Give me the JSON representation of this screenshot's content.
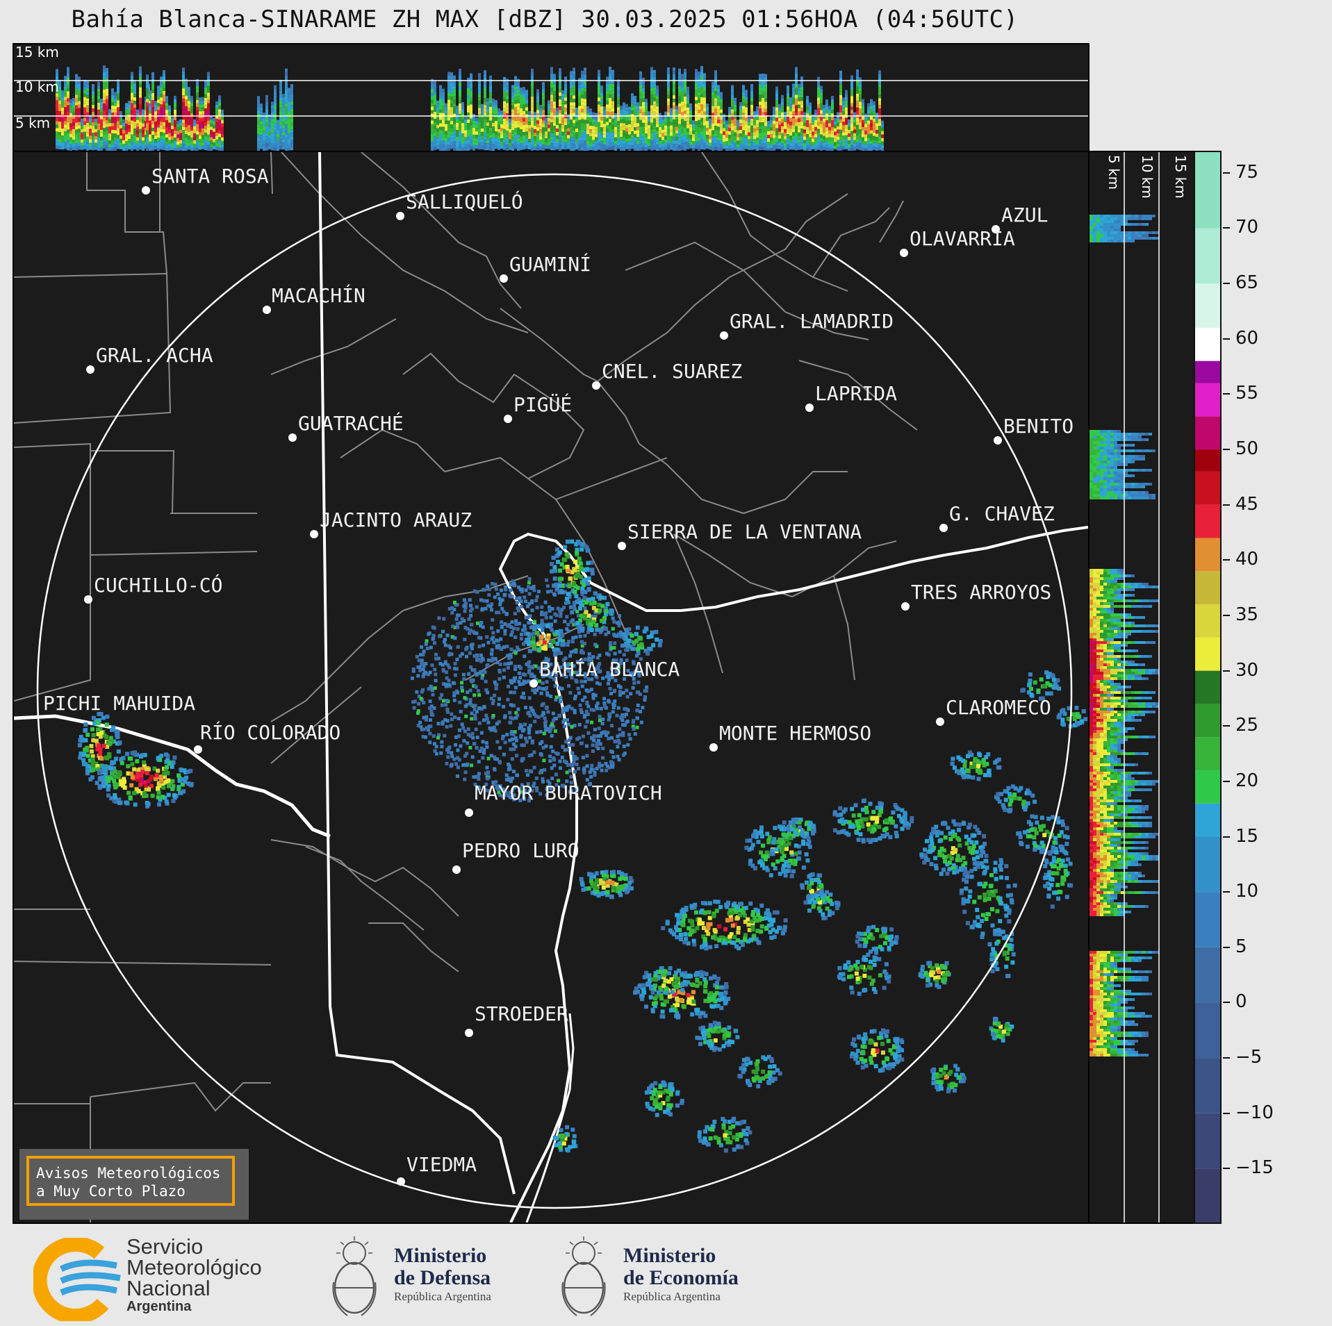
{
  "title": "Bahía Blanca-SINARAME ZH MAX [dBZ] 30.03.2025 01:56HOA (04:56UTC)",
  "top_section": {
    "labels": [
      "15 km",
      "10 km",
      "5 km"
    ]
  },
  "right_section": {
    "labels": [
      "5 km",
      "10 km",
      "15 km"
    ]
  },
  "colorbar": {
    "ticks": [
      75,
      70,
      65,
      60,
      55,
      50,
      45,
      40,
      35,
      30,
      25,
      20,
      15,
      10,
      5,
      0,
      -5,
      -10,
      -15
    ],
    "tick_labels": [
      "75",
      "70",
      "65",
      "60",
      "55",
      "50",
      "45",
      "40",
      "35",
      "30",
      "25",
      "20",
      "15",
      "10",
      "5",
      "0",
      "−5",
      "−10",
      "−15"
    ],
    "range": [
      -20,
      77
    ],
    "bands": [
      {
        "from": -20,
        "to": -15,
        "color": "#3a3d68"
      },
      {
        "from": -15,
        "to": -10,
        "color": "#3b4878"
      },
      {
        "from": -10,
        "to": -5,
        "color": "#3c5588"
      },
      {
        "from": -5,
        "to": 0,
        "color": "#3d6198"
      },
      {
        "from": 0,
        "to": 5,
        "color": "#3f6da6"
      },
      {
        "from": 5,
        "to": 10,
        "color": "#3a7fbf"
      },
      {
        "from": 10,
        "to": 15,
        "color": "#3391c9"
      },
      {
        "from": 15,
        "to": 18,
        "color": "#2ea5d6"
      },
      {
        "from": 18,
        "to": 21,
        "color": "#31c94a"
      },
      {
        "from": 21,
        "to": 24,
        "color": "#38b43a"
      },
      {
        "from": 24,
        "to": 27,
        "color": "#2f9a2e"
      },
      {
        "from": 27,
        "to": 30,
        "color": "#257826"
      },
      {
        "from": 30,
        "to": 33,
        "color": "#ecec3a"
      },
      {
        "from": 33,
        "to": 36,
        "color": "#d9d63c"
      },
      {
        "from": 36,
        "to": 39,
        "color": "#c7b83a"
      },
      {
        "from": 39,
        "to": 42,
        "color": "#e09030"
      },
      {
        "from": 42,
        "to": 45,
        "color": "#e8203a"
      },
      {
        "from": 45,
        "to": 48,
        "color": "#c8101e"
      },
      {
        "from": 48,
        "to": 50,
        "color": "#a0000e"
      },
      {
        "from": 50,
        "to": 53,
        "color": "#c0086c"
      },
      {
        "from": 53,
        "to": 56,
        "color": "#e020c8"
      },
      {
        "from": 56,
        "to": 58,
        "color": "#9b0aa0"
      },
      {
        "from": 58,
        "to": 61,
        "color": "#ffffff"
      },
      {
        "from": 61,
        "to": 65,
        "color": "#d8f5ea"
      },
      {
        "from": 65,
        "to": 70,
        "color": "#aeecd6"
      },
      {
        "from": 70,
        "to": 77,
        "color": "#8de0c0"
      }
    ]
  },
  "cities": [
    {
      "name": "SANTA ROSA"
    },
    {
      "name": "SALLIQUELÓ"
    },
    {
      "name": "GUAMINÍ"
    },
    {
      "name": "MACACHÍN"
    },
    {
      "name": "GRAL. ACHA"
    },
    {
      "name": "GUATRACHÉ"
    },
    {
      "name": "PIGÜÉ"
    },
    {
      "name": "CNEL. SUAREZ"
    },
    {
      "name": "GRAL. LAMADRID"
    },
    {
      "name": "LAPRIDA"
    },
    {
      "name": "AZUL"
    },
    {
      "name": "OLAVARRÍA"
    },
    {
      "name": "BENITO"
    },
    {
      "name": "G. CHAVEZ"
    },
    {
      "name": "JACINTO ARAUZ"
    },
    {
      "name": "SIERRA DE LA VENTANA"
    },
    {
      "name": "CUCHILLO-CÓ"
    },
    {
      "name": "TRES ARROYOS"
    },
    {
      "name": "BAHÍA BLANCA"
    },
    {
      "name": "PICHI MAHUIDA"
    },
    {
      "name": "CLAROMECO"
    },
    {
      "name": "RÍO COLORADO"
    },
    {
      "name": "MONTE HERMOSO"
    },
    {
      "name": "MAYOR BURATOVICH"
    },
    {
      "name": "PEDRO LURO"
    },
    {
      "name": "STROEDER"
    },
    {
      "name": "VIEDMA"
    }
  ],
  "aviso": {
    "line1": "Avisos Meteorológicos",
    "line2": "a Muy Corto Plazo"
  },
  "footer": {
    "smn": {
      "line1": "Servicio",
      "line2": "Meteorológico",
      "line3": "Nacional",
      "line4": "Argentina"
    },
    "defensa": {
      "line1": "Ministerio",
      "line2": "de Defensa",
      "line3": "República Argentina"
    },
    "economia": {
      "line1": "Ministerio",
      "line2": "de Economía",
      "line3": "República Argentina"
    }
  },
  "icons": [
    "smn-logo-icon",
    "coat-of-arms-icon"
  ]
}
